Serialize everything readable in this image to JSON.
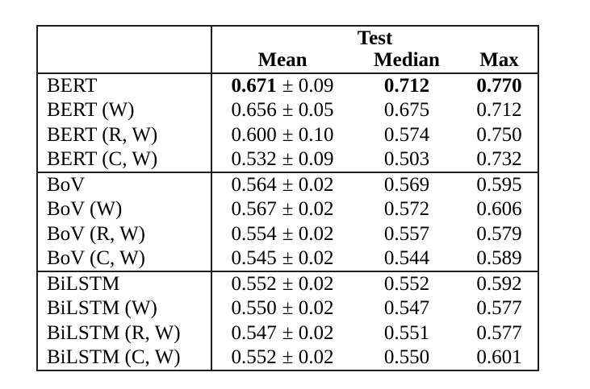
{
  "table": {
    "header": {
      "group": "Test",
      "columns": {
        "mean": "Mean",
        "median": "Median",
        "max": "Max"
      }
    },
    "rows": [
      {
        "label": "BERT",
        "mean": "0.671",
        "pm": "± 0.09",
        "median": "0.712",
        "max": "0.770"
      },
      {
        "label": "BERT (W)",
        "mean": "0.656",
        "pm": "± 0.05",
        "median": "0.675",
        "max": "0.712"
      },
      {
        "label": "BERT (R, W)",
        "mean": "0.600",
        "pm": "± 0.10",
        "median": "0.574",
        "max": "0.750"
      },
      {
        "label": "BERT (C, W)",
        "mean": "0.532",
        "pm": "± 0.09",
        "median": "0.503",
        "max": "0.732"
      },
      {
        "label": "BoV",
        "mean": "0.564",
        "pm": "± 0.02",
        "median": "0.569",
        "max": "0.595"
      },
      {
        "label": "BoV (W)",
        "mean": "0.567",
        "pm": "± 0.02",
        "median": "0.572",
        "max": "0.606"
      },
      {
        "label": "BoV (R, W)",
        "mean": "0.554",
        "pm": "± 0.02",
        "median": "0.557",
        "max": "0.579"
      },
      {
        "label": "BoV (C, W)",
        "mean": "0.545",
        "pm": "± 0.02",
        "median": "0.544",
        "max": "0.589"
      },
      {
        "label": "BiLSTM",
        "mean": "0.552",
        "pm": "± 0.02",
        "median": "0.552",
        "max": "0.592"
      },
      {
        "label": "BiLSTM (W)",
        "mean": "0.550",
        "pm": "± 0.02",
        "median": "0.547",
        "max": "0.577"
      },
      {
        "label": "BiLSTM (R, W)",
        "mean": "0.547",
        "pm": "± 0.02",
        "median": "0.551",
        "max": "0.577"
      },
      {
        "label": "BiLSTM (C, W)",
        "mean": "0.552",
        "pm": "± 0.02",
        "median": "0.550",
        "max": "0.601"
      }
    ],
    "colors": {
      "text": "#000000",
      "border": "#1f1f1f",
      "background": "#ffffff"
    }
  }
}
